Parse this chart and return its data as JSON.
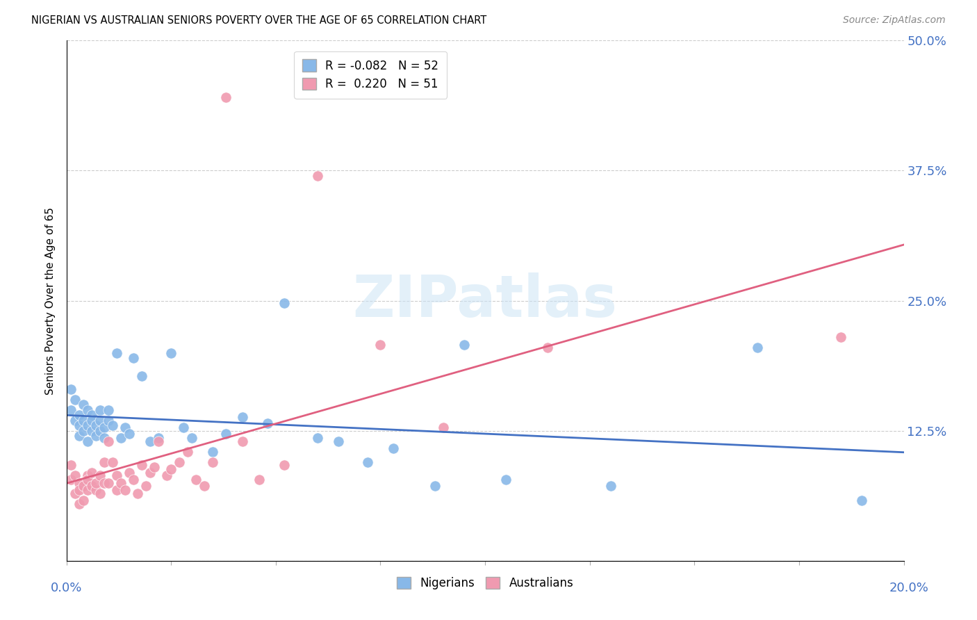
{
  "title": "NIGERIAN VS AUSTRALIAN SENIORS POVERTY OVER THE AGE OF 65 CORRELATION CHART",
  "source": "Source: ZipAtlas.com",
  "ylabel": "Seniors Poverty Over the Age of 65",
  "nigerian_color": "#88b8e8",
  "australian_color": "#f09ab0",
  "nigerian_line_color": "#4472c4",
  "australian_line_color": "#e06080",
  "background_color": "#ffffff",
  "grid_color": "#cccccc",
  "watermark_text": "ZIPatlas",
  "legend1_label": "R = -0.082   N = 52",
  "legend2_label": "R =  0.220   N = 51",
  "legend3_label": "Nigerians",
  "legend4_label": "Australians",
  "xlim": [
    0.0,
    0.2
  ],
  "ylim": [
    0.0,
    0.5
  ],
  "nigerians_x": [
    0.001,
    0.001,
    0.002,
    0.002,
    0.003,
    0.003,
    0.003,
    0.004,
    0.004,
    0.004,
    0.005,
    0.005,
    0.005,
    0.006,
    0.006,
    0.006,
    0.007,
    0.007,
    0.008,
    0.008,
    0.008,
    0.009,
    0.009,
    0.01,
    0.01,
    0.011,
    0.012,
    0.013,
    0.014,
    0.015,
    0.016,
    0.018,
    0.02,
    0.022,
    0.025,
    0.028,
    0.03,
    0.035,
    0.038,
    0.042,
    0.048,
    0.052,
    0.06,
    0.065,
    0.072,
    0.078,
    0.088,
    0.095,
    0.105,
    0.13,
    0.165,
    0.19
  ],
  "nigerians_y": [
    0.145,
    0.165,
    0.135,
    0.155,
    0.12,
    0.14,
    0.13,
    0.125,
    0.135,
    0.15,
    0.13,
    0.145,
    0.115,
    0.14,
    0.125,
    0.135,
    0.13,
    0.12,
    0.145,
    0.125,
    0.135,
    0.128,
    0.118,
    0.135,
    0.145,
    0.13,
    0.2,
    0.118,
    0.128,
    0.122,
    0.195,
    0.178,
    0.115,
    0.118,
    0.2,
    0.128,
    0.118,
    0.105,
    0.122,
    0.138,
    0.132,
    0.248,
    0.118,
    0.115,
    0.095,
    0.108,
    0.072,
    0.208,
    0.078,
    0.072,
    0.205,
    0.058
  ],
  "australians_x": [
    0.001,
    0.001,
    0.002,
    0.002,
    0.003,
    0.003,
    0.003,
    0.004,
    0.004,
    0.005,
    0.005,
    0.005,
    0.006,
    0.006,
    0.007,
    0.007,
    0.008,
    0.008,
    0.009,
    0.009,
    0.01,
    0.01,
    0.011,
    0.012,
    0.012,
    0.013,
    0.014,
    0.015,
    0.016,
    0.017,
    0.018,
    0.019,
    0.02,
    0.021,
    0.022,
    0.024,
    0.025,
    0.027,
    0.029,
    0.031,
    0.033,
    0.035,
    0.038,
    0.042,
    0.046,
    0.052,
    0.06,
    0.075,
    0.09,
    0.115,
    0.185
  ],
  "australians_y": [
    0.078,
    0.092,
    0.065,
    0.082,
    0.055,
    0.075,
    0.068,
    0.058,
    0.072,
    0.082,
    0.068,
    0.078,
    0.072,
    0.085,
    0.068,
    0.075,
    0.082,
    0.065,
    0.095,
    0.075,
    0.115,
    0.075,
    0.095,
    0.068,
    0.082,
    0.075,
    0.068,
    0.085,
    0.078,
    0.065,
    0.092,
    0.072,
    0.085,
    0.09,
    0.115,
    0.082,
    0.088,
    0.095,
    0.105,
    0.078,
    0.072,
    0.095,
    0.445,
    0.115,
    0.078,
    0.092,
    0.37,
    0.208,
    0.128,
    0.205,
    0.215
  ]
}
